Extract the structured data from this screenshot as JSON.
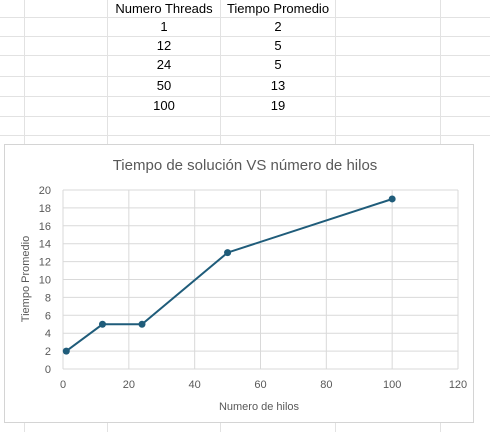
{
  "table": {
    "headers": [
      "Numero Threads",
      "Tiempo Promedio"
    ],
    "rows": [
      [
        "1",
        "2"
      ],
      [
        "12",
        "5"
      ],
      [
        "24",
        "5"
      ],
      [
        "50",
        "13"
      ],
      [
        "100",
        "19"
      ]
    ]
  },
  "chart_data": {
    "type": "line",
    "title": "Tiempo de solución VS número de hilos",
    "xlabel": "Numero de hilos",
    "ylabel": "Tiempo Promedio",
    "series": [
      {
        "x": [
          1,
          12,
          24,
          50,
          100
        ],
        "values": [
          2,
          5,
          5,
          13,
          19
        ]
      }
    ],
    "xlim": [
      0,
      120
    ],
    "ylim": [
      0,
      20
    ],
    "x_ticks": [
      "0",
      "20",
      "40",
      "60",
      "80",
      "100",
      "120"
    ],
    "y_ticks": [
      "0",
      "2",
      "4",
      "6",
      "8",
      "10",
      "12",
      "14",
      "16",
      "18",
      "20"
    ],
    "grid": true,
    "legend": "none",
    "colors": {
      "line": "#1f5c7a",
      "grid": "#d9d9d9",
      "axis_text": "#595959"
    }
  }
}
